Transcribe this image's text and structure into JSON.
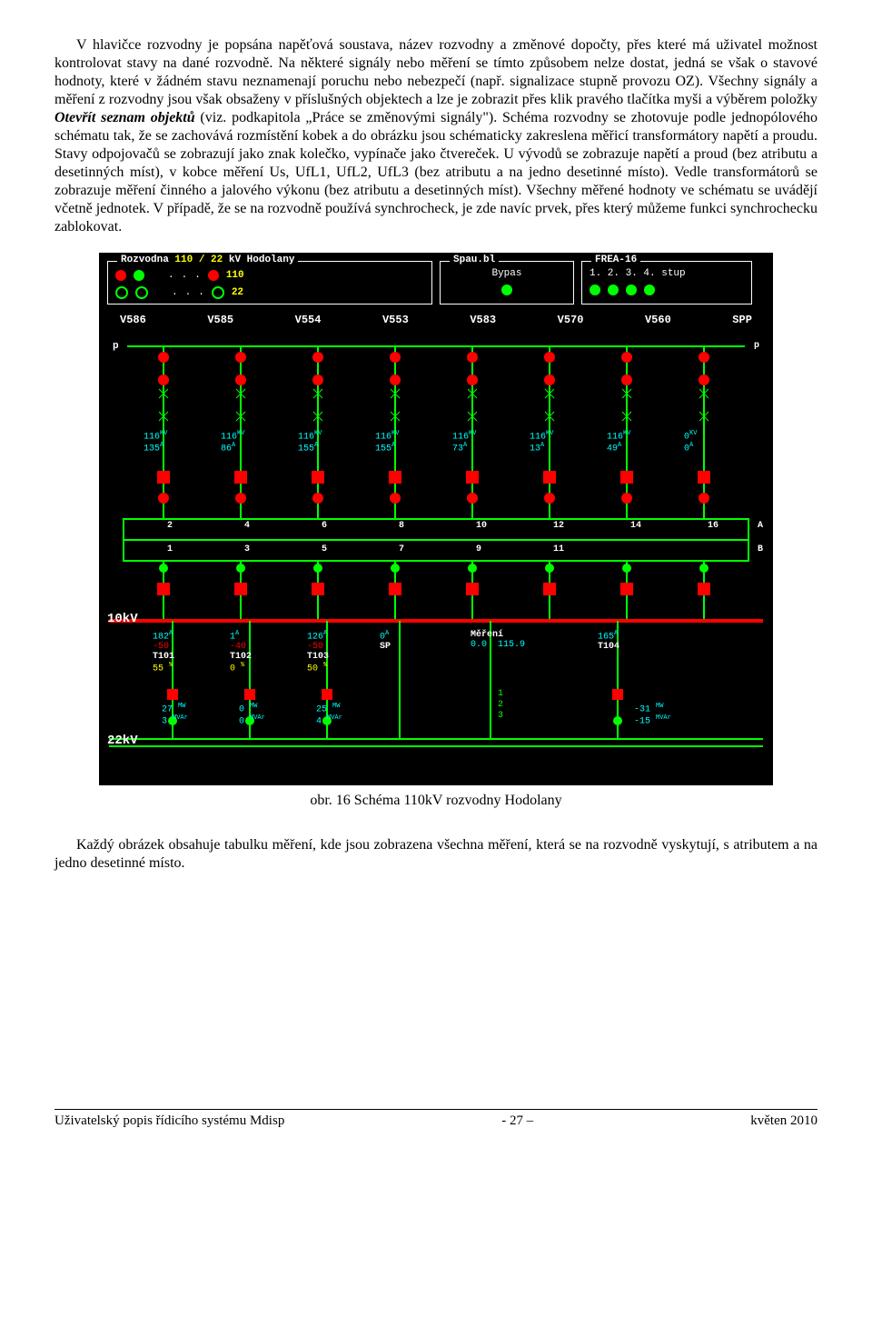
{
  "para1": "V hlavičce rozvodny je popsána napěťová soustava, název rozvodny a změnové dopočty, přes které má uživatel možnost kontrolovat stavy na dané rozvodně. Na některé signály nebo měření se tímto způsobem nelze dostat, jedná se však o stavové hodnoty, které v žádném stavu neznamenají poruchu nebo nebezpečí (např. signalizace stupně provozu OZ). Všechny signály a měření z rozvodny jsou však obsaženy v příslušných objektech a lze je zobrazit přes klik pravého tlačítka myši a výběrem položky ",
  "para1_em": "Otevřít seznam objektů",
  "para1_b": " (viz. podkapitola „Práce se změnovými signály\"). Schéma rozvodny se zhotovuje podle jednopólového schématu tak, že se zachovává rozmístění kobek a do obrázku jsou schématicky zakreslena měřicí transformátory napětí a proudu. Stavy odpojovačů se zobrazují jako znak kolečko, vypínače jako čtvereček. U vývodů se zobrazuje napětí a proud (bez atributu a desetinných míst), v kobce měření Us, UfL1, UfL2, UfL3 (bez atributu a na jedno desetinné místo). Vedle transformátorů se zobrazuje měření činného a jalového výkonu (bez atributu a desetinných míst). Všechny měřené hodnoty ve schématu se uvádějí včetně jednotek. V případě, že se na rozvodně používá synchrocheck, je zde navíc prvek, přes který můžeme funkci synchrochecku zablokovat.",
  "caption": "obr. 16   Schéma 110kV rozvodny Hodolany",
  "para2": "Každý obrázek obsahuje tabulku měření, kde jsou zobrazena všechna měření, která se na rozvodně vyskytují, s atributem a na jedno desetinné místo.",
  "footer_left": "Uživatelský popis řídicího systému Mdisp",
  "footer_mid": "- 27 –",
  "footer_right": "květen 2010",
  "hdr": {
    "title_a": "Rozvodna",
    "title_b": "110  /  22",
    "title_c": "kV Hodolany",
    "spau": "Spau.bl",
    "bypas": "Bypas",
    "frea": "FREA-16",
    "stup": "1.   2.   3.   4.   stup",
    "n110": "110",
    "n22": "22"
  },
  "columns": [
    "V586",
    "V585",
    "V554",
    "V553",
    "V583",
    "V570",
    "V560",
    "SPP"
  ],
  "p_left": "p",
  "p_right": "p",
  "measurements": {
    "kv": [
      "116",
      "116",
      "116",
      "116",
      "116",
      "116",
      "116",
      "0"
    ],
    "a": [
      "135",
      "86",
      "155",
      "155",
      "73",
      "13",
      "49",
      "0"
    ]
  },
  "bus_nums_top": [
    "2",
    "4",
    "6",
    "8",
    "10",
    "12",
    "14",
    "16"
  ],
  "bus_nums_bot": [
    "1",
    "3",
    "5",
    "7",
    "9",
    "11",
    "",
    "",
    ""
  ],
  "bus_lbl_a": "A",
  "bus_lbl_b": "B",
  "lbl10kv": "10kV",
  "lbl22kv": "22kV",
  "bottom": {
    "t101": {
      "amp": "182",
      "a": "A",
      "r": "-50",
      "name": "T101",
      "pct": "55",
      "pu": "%"
    },
    "t102": {
      "amp": "1",
      "a": "A",
      "r": "-40",
      "name": "T102",
      "pct": "0",
      "pu": "%"
    },
    "t103": {
      "amp": "126",
      "a": "A",
      "r": "-50",
      "name": "T103",
      "pct": "50",
      "pu": "%"
    },
    "sp": {
      "amp": "0",
      "a": "A",
      "name": "SP"
    },
    "mereni": {
      "name": "Měření",
      "v1": "0.0",
      "v2": "115.9"
    },
    "t104": {
      "amp": "165",
      "a": "A",
      "name": "T104"
    },
    "mw": [
      {
        "mw": "27",
        "mvar": "3"
      },
      {
        "mw": "0",
        "mvar": "0"
      },
      {
        "mw": "25",
        "mvar": "4"
      }
    ],
    "mw_r": {
      "mw": "-31",
      "mvar": "-15"
    },
    "u_mw": "MW",
    "u_mvar": "MVAr",
    "dots": [
      "1",
      "2",
      "3"
    ]
  },
  "colors": {
    "green": "#00ff00",
    "red": "#ff0000",
    "cyan": "#00ffff",
    "yellow": "#ffff00",
    "white": "#ffffff"
  }
}
